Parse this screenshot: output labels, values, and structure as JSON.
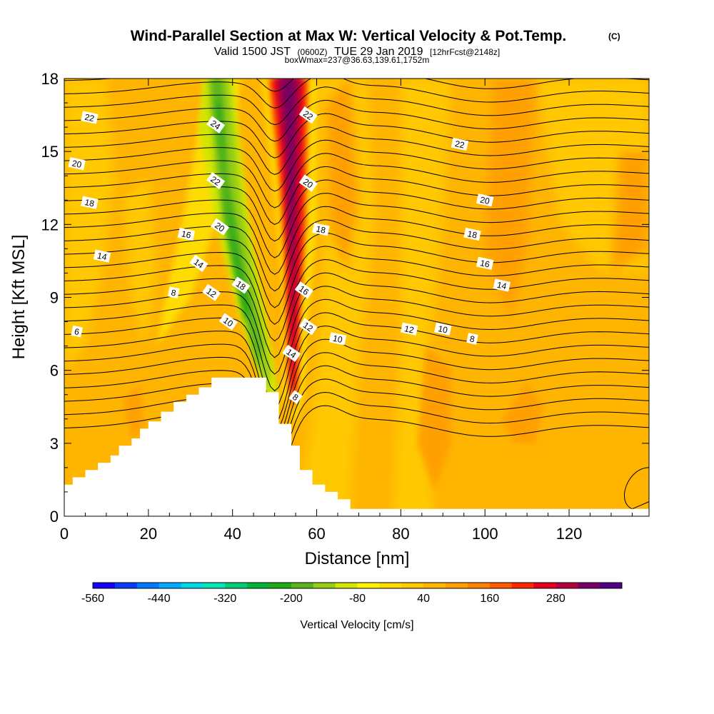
{
  "chart_data": {
    "type": "heatmap",
    "title": "Wind-Parallel Section at Max W: Vertical Velocity & Pot.Temp.",
    "title_mark": "(C)",
    "subtitle": {
      "part1": "Valid 1500 JST",
      "part2": "(0600Z)",
      "part3": "TUE 29 Jan 2019",
      "part4": "[12hrFcst@2148z]"
    },
    "subtitle2": "boxWmax=237@36.63,139.61,1752m",
    "xlabel": "Distance [nm]",
    "ylabel": "Height [Kft MSL]",
    "xlim": [
      0,
      139
    ],
    "ylim": [
      0,
      18
    ],
    "x_ticks": [
      0,
      20,
      40,
      60,
      80,
      100,
      120
    ],
    "y_ticks": [
      0,
      3,
      6,
      9,
      12,
      15,
      18
    ],
    "colorbar": {
      "label": "Vertical Velocity [cm/s]",
      "tick_labels": [
        "-560",
        "-440",
        "-320",
        "-200",
        "-80",
        "40",
        "160",
        "280"
      ],
      "colors": [
        "#1400ff",
        "#0a3cff",
        "#0078ff",
        "#00aaff",
        "#00d7e6",
        "#00e6b4",
        "#00cd78",
        "#00b43c",
        "#1eaa14",
        "#5ab41e",
        "#96cd14",
        "#d2e600",
        "#fff500",
        "#ffdc00",
        "#ffc800",
        "#ffb400",
        "#ffa000",
        "#ff8200",
        "#ff5a00",
        "#ff2800",
        "#e6001e",
        "#b4003c",
        "#780064",
        "#500082"
      ]
    },
    "background_value": "40",
    "terrain_profile": [
      [
        0,
        1.3
      ],
      [
        2,
        1.3
      ],
      [
        2,
        1.6
      ],
      [
        5,
        1.6
      ],
      [
        5,
        1.9
      ],
      [
        8,
        1.9
      ],
      [
        8,
        2.2
      ],
      [
        11,
        2.2
      ],
      [
        11,
        2.5
      ],
      [
        13,
        2.5
      ],
      [
        13,
        2.9
      ],
      [
        16,
        2.9
      ],
      [
        16,
        3.2
      ],
      [
        18,
        3.2
      ],
      [
        18,
        3.6
      ],
      [
        20,
        3.6
      ],
      [
        20,
        3.9
      ],
      [
        23,
        3.9
      ],
      [
        23,
        4.3
      ],
      [
        26,
        4.3
      ],
      [
        26,
        4.7
      ],
      [
        29,
        4.7
      ],
      [
        29,
        5.0
      ],
      [
        32,
        5.0
      ],
      [
        32,
        5.3
      ],
      [
        35,
        5.3
      ],
      [
        35,
        5.7
      ],
      [
        44,
        5.7
      ],
      [
        44,
        5.7
      ],
      [
        48,
        5.7
      ],
      [
        48,
        5.1
      ],
      [
        51,
        5.1
      ],
      [
        51,
        3.8
      ],
      [
        54,
        3.8
      ],
      [
        54,
        2.9
      ],
      [
        56,
        2.9
      ],
      [
        56,
        1.9
      ],
      [
        59,
        1.9
      ],
      [
        59,
        1.3
      ],
      [
        62,
        1.3
      ],
      [
        62,
        1.0
      ],
      [
        65,
        1.0
      ],
      [
        65,
        0.7
      ],
      [
        68,
        0.7
      ],
      [
        68,
        0.3
      ],
      [
        139,
        0.3
      ]
    ],
    "isentrope_labels": [
      {
        "text": "22",
        "x": 6,
        "y": 16.4
      },
      {
        "text": "20",
        "x": 3,
        "y": 14.5
      },
      {
        "text": "18",
        "x": 6,
        "y": 12.9
      },
      {
        "text": "14",
        "x": 9,
        "y": 10.7
      },
      {
        "text": "6",
        "x": 3,
        "y": 7.6
      },
      {
        "text": "16",
        "x": 29,
        "y": 11.6
      },
      {
        "text": "8",
        "x": 26,
        "y": 9.2
      },
      {
        "text": "14",
        "x": 32,
        "y": 10.4
      },
      {
        "text": "12",
        "x": 35,
        "y": 9.2
      },
      {
        "text": "10",
        "x": 39,
        "y": 8.0
      },
      {
        "text": "24",
        "x": 36,
        "y": 16.1
      },
      {
        "text": "22",
        "x": 36,
        "y": 13.8
      },
      {
        "text": "20",
        "x": 37,
        "y": 11.9
      },
      {
        "text": "18",
        "x": 42,
        "y": 9.5
      },
      {
        "text": "22",
        "x": 58,
        "y": 16.5
      },
      {
        "text": "20",
        "x": 58,
        "y": 13.7
      },
      {
        "text": "18",
        "x": 61,
        "y": 11.8
      },
      {
        "text": "16",
        "x": 57,
        "y": 9.3
      },
      {
        "text": "12",
        "x": 58,
        "y": 7.8
      },
      {
        "text": "14",
        "x": 54,
        "y": 6.7
      },
      {
        "text": "8",
        "x": 55,
        "y": 4.9
      },
      {
        "text": "10",
        "x": 65,
        "y": 7.3
      },
      {
        "text": "22",
        "x": 94,
        "y": 15.3
      },
      {
        "text": "20",
        "x": 100,
        "y": 13.0
      },
      {
        "text": "18",
        "x": 97,
        "y": 11.6
      },
      {
        "text": "16",
        "x": 100,
        "y": 10.4
      },
      {
        "text": "14",
        "x": 104,
        "y": 9.5
      },
      {
        "text": "12",
        "x": 82,
        "y": 7.7
      },
      {
        "text": "10",
        "x": 90,
        "y": 7.7
      },
      {
        "text": "8",
        "x": 97,
        "y": 7.3
      }
    ],
    "grid": false
  }
}
